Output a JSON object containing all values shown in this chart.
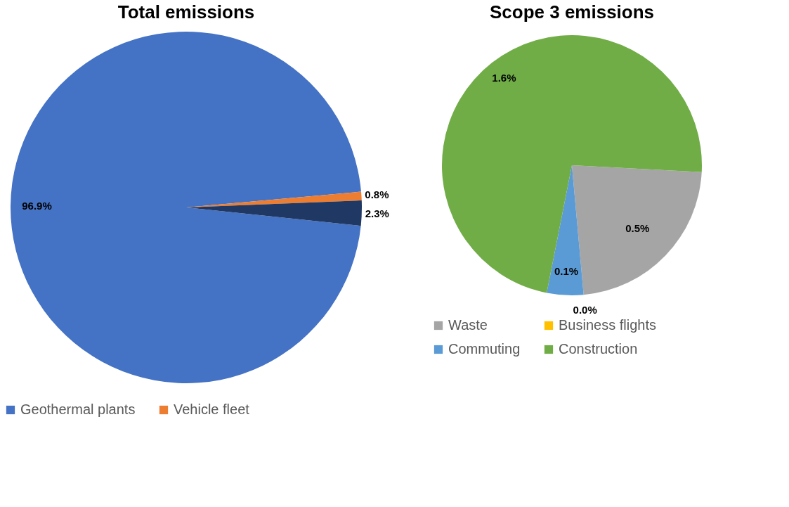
{
  "chart_data": [
    {
      "type": "pie",
      "title": "Total emissions",
      "categories": [
        "Geothermal plants",
        "Vehicle fleet",
        null
      ],
      "values": [
        96.9,
        0.8,
        2.3
      ],
      "colors": [
        "#4472c4",
        "#ed7d31",
        "#1f3864"
      ],
      "value_labels": [
        "96.9%",
        "0.8%",
        "2.3%"
      ],
      "legend": "bottom"
    },
    {
      "type": "pie",
      "title": "Scope 3 emissions",
      "categories": [
        "Waste",
        "Business flights",
        "Commuting",
        "Construction"
      ],
      "values": [
        0.5,
        0.0,
        0.1,
        1.6
      ],
      "colors": [
        "#a5a5a5",
        "#ffc000",
        "#5b9bd5",
        "#70ad47"
      ],
      "value_labels": [
        "0.5%",
        "0.0%",
        "0.1%",
        "1.6%"
      ],
      "legend": "bottom"
    }
  ]
}
